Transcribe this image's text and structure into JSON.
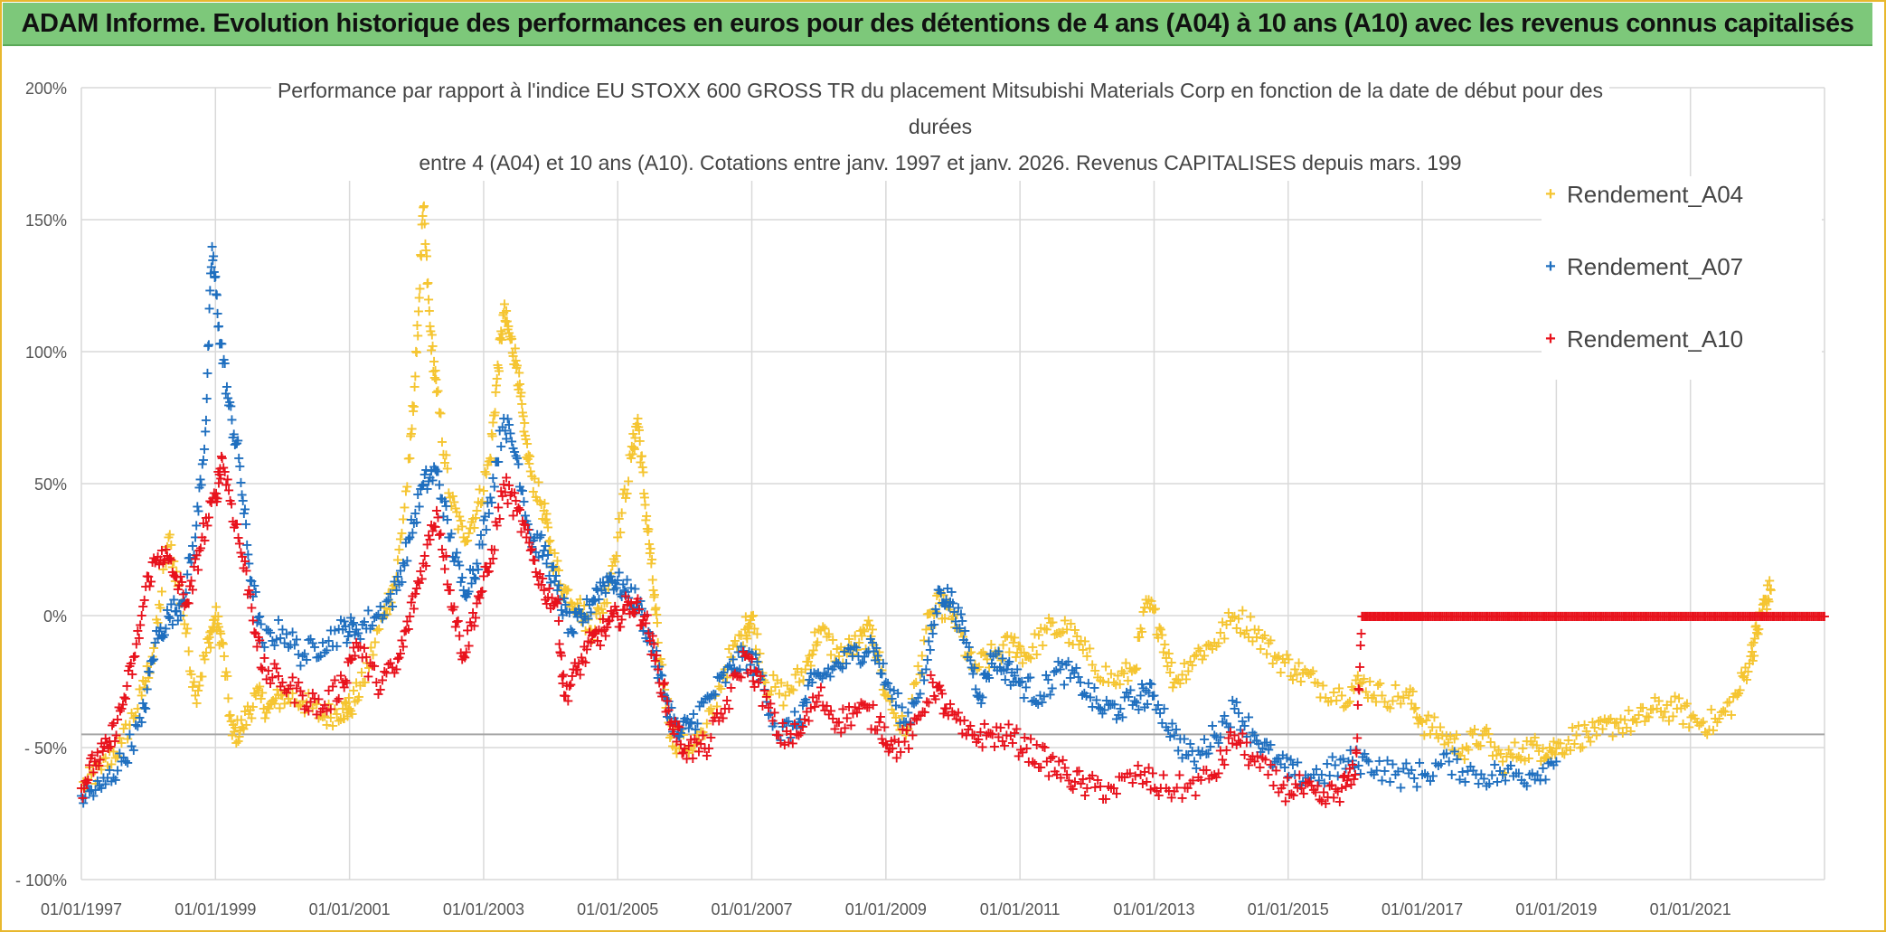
{
  "banner": {
    "text": "ADAM Informe. Evolution historique des performances en euros pour des détentions de 4 ans (A04) à 10 ans (A10) avec les revenus connus capitalisés"
  },
  "chart_data": {
    "type": "scatter",
    "title_lines": [
      "Performance par rapport à l'indice EU STOXX 600 GROSS TR  du placement Mitsubishi Materials Corp en fonction de la date de début pour des",
      "durées",
      "entre 4 (A04) et 10 ans (A10). Cotations entre janv. 1997 et janv. 2026. Revenus CAPITALISES depuis mars. 199"
    ],
    "xlabel": "",
    "ylabel": "",
    "x_ticks": [
      "01/01/1997",
      "01/01/1999",
      "01/01/2001",
      "01/01/2003",
      "01/01/2005",
      "01/01/2007",
      "01/01/2009",
      "01/01/2011",
      "01/01/2013",
      "01/01/2015",
      "01/01/2017",
      "01/01/2019",
      "01/01/2021"
    ],
    "x_range": [
      1997.0,
      2023.0
    ],
    "y_ticks": [
      {
        "value": 200,
        "label": "200%"
      },
      {
        "value": 150,
        "label": "150%"
      },
      {
        "value": 100,
        "label": "100%"
      },
      {
        "value": 50,
        "label": "50%"
      },
      {
        "value": 0,
        "label": "0%"
      },
      {
        "value": -50,
        "label": "- 50%"
      },
      {
        "value": -100,
        "label": "- 100%"
      }
    ],
    "y_range": [
      -100,
      200
    ],
    "reference_line": -45,
    "grid": true,
    "legend_position": "top-right",
    "series": [
      {
        "name": "Rendement_A04",
        "color": "#f5c531",
        "marker": "+",
        "points": [
          [
            1997.0,
            -65
          ],
          [
            1997.3,
            -58
          ],
          [
            1997.6,
            -48
          ],
          [
            1997.9,
            -30
          ],
          [
            1998.1,
            -10
          ],
          [
            1998.3,
            30
          ],
          [
            1998.5,
            5
          ],
          [
            1998.7,
            -30
          ],
          [
            1998.9,
            -10
          ],
          [
            1999.0,
            0
          ],
          [
            1999.1,
            -10
          ],
          [
            1999.25,
            -45
          ],
          [
            1999.4,
            -42
          ],
          [
            1999.6,
            -30
          ],
          [
            1999.8,
            -35
          ],
          [
            2000.0,
            -30
          ],
          [
            2000.3,
            -32
          ],
          [
            2000.6,
            -38
          ],
          [
            2000.9,
            -35
          ],
          [
            2001.0,
            -35
          ],
          [
            2001.2,
            -25
          ],
          [
            2001.5,
            0
          ],
          [
            2001.7,
            15
          ],
          [
            2001.9,
            60
          ],
          [
            2002.0,
            100
          ],
          [
            2002.1,
            155
          ],
          [
            2002.2,
            110
          ],
          [
            2002.3,
            85
          ],
          [
            2002.5,
            45
          ],
          [
            2002.7,
            30
          ],
          [
            2002.9,
            40
          ],
          [
            2003.1,
            60
          ],
          [
            2003.2,
            90
          ],
          [
            2003.3,
            115
          ],
          [
            2003.4,
            105
          ],
          [
            2003.5,
            95
          ],
          [
            2003.6,
            70
          ],
          [
            2003.7,
            55
          ],
          [
            2003.9,
            40
          ],
          [
            2004.0,
            25
          ],
          [
            2004.2,
            10
          ],
          [
            2004.4,
            5
          ],
          [
            2004.6,
            -5
          ],
          [
            2004.8,
            5
          ],
          [
            2005.0,
            30
          ],
          [
            2005.2,
            60
          ],
          [
            2005.3,
            75
          ],
          [
            2005.4,
            45
          ],
          [
            2005.5,
            20
          ],
          [
            2005.6,
            -10
          ],
          [
            2005.8,
            -45
          ],
          [
            2006.0,
            -50
          ],
          [
            2006.3,
            -45
          ],
          [
            2006.6,
            -20
          ],
          [
            2006.9,
            -5
          ],
          [
            2007.0,
            0
          ],
          [
            2007.2,
            -25
          ],
          [
            2007.5,
            -30
          ],
          [
            2007.8,
            -20
          ],
          [
            2008.0,
            -5
          ],
          [
            2008.3,
            -15
          ],
          [
            2008.6,
            -10
          ],
          [
            2008.8,
            -5
          ],
          [
            2009.0,
            -30
          ],
          [
            2009.3,
            -45
          ],
          [
            2009.6,
            -5
          ],
          [
            2009.8,
            5
          ],
          [
            2010.0,
            0
          ],
          [
            2010.3,
            -20
          ],
          [
            2010.6,
            -15
          ],
          [
            2010.9,
            -10
          ],
          [
            2011.1,
            -15
          ],
          [
            2011.4,
            -5
          ],
          [
            2011.7,
            -5
          ],
          [
            2012.0,
            -15
          ],
          [
            2012.4,
            -25
          ],
          [
            2012.7,
            -20
          ],
          [
            2012.9,
            5
          ],
          [
            2013.1,
            -5
          ],
          [
            2013.3,
            -25
          ],
          [
            2013.6,
            -15
          ],
          [
            2013.9,
            -10
          ],
          [
            2014.2,
            0
          ],
          [
            2014.5,
            -5
          ],
          [
            2014.8,
            -15
          ],
          [
            2015.1,
            -20
          ],
          [
            2015.4,
            -25
          ],
          [
            2015.8,
            -30
          ],
          [
            2016.1,
            -25
          ],
          [
            2016.4,
            -30
          ],
          [
            2016.8,
            -30
          ],
          [
            2017.0,
            -40
          ],
          [
            2017.3,
            -45
          ],
          [
            2017.6,
            -50
          ],
          [
            2017.9,
            -45
          ],
          [
            2018.2,
            -55
          ],
          [
            2018.5,
            -50
          ],
          [
            2018.8,
            -50
          ],
          [
            2019.0,
            -50
          ],
          [
            2019.3,
            -45
          ],
          [
            2019.6,
            -45
          ],
          [
            2019.9,
            -40
          ],
          [
            2020.2,
            -40
          ],
          [
            2020.5,
            -35
          ],
          [
            2020.8,
            -35
          ],
          [
            2021.1,
            -40
          ],
          [
            2021.4,
            -40
          ],
          [
            2021.7,
            -30
          ],
          [
            2021.9,
            -15
          ],
          [
            2022.0,
            -5
          ],
          [
            2022.1,
            5
          ],
          [
            2022.2,
            10
          ]
        ]
      },
      {
        "name": "Rendement_A07",
        "color": "#1f6fbf",
        "marker": "+",
        "points": [
          [
            1997.0,
            -68
          ],
          [
            1997.3,
            -65
          ],
          [
            1997.6,
            -55
          ],
          [
            1997.9,
            -40
          ],
          [
            1998.1,
            -10
          ],
          [
            1998.3,
            0
          ],
          [
            1998.5,
            5
          ],
          [
            1998.7,
            30
          ],
          [
            1998.85,
            70
          ],
          [
            1998.95,
            140
          ],
          [
            1999.05,
            110
          ],
          [
            1999.2,
            80
          ],
          [
            1999.35,
            60
          ],
          [
            1999.5,
            20
          ],
          [
            1999.7,
            -10
          ],
          [
            2000.0,
            -5
          ],
          [
            2000.3,
            -15
          ],
          [
            2000.6,
            -10
          ],
          [
            2000.9,
            -5
          ],
          [
            2001.1,
            -5
          ],
          [
            2001.4,
            0
          ],
          [
            2001.7,
            10
          ],
          [
            2001.9,
            30
          ],
          [
            2002.1,
            50
          ],
          [
            2002.3,
            55
          ],
          [
            2002.5,
            30
          ],
          [
            2002.7,
            10
          ],
          [
            2002.9,
            20
          ],
          [
            2003.1,
            45
          ],
          [
            2003.3,
            75
          ],
          [
            2003.5,
            60
          ],
          [
            2003.7,
            30
          ],
          [
            2003.9,
            25
          ],
          [
            2004.1,
            10
          ],
          [
            2004.3,
            -5
          ],
          [
            2004.5,
            0
          ],
          [
            2004.7,
            10
          ],
          [
            2004.9,
            15
          ],
          [
            2005.1,
            10
          ],
          [
            2005.3,
            5
          ],
          [
            2005.5,
            -10
          ],
          [
            2005.7,
            -30
          ],
          [
            2005.9,
            -45
          ],
          [
            2006.1,
            -40
          ],
          [
            2006.4,
            -30
          ],
          [
            2006.7,
            -20
          ],
          [
            2006.9,
            -15
          ],
          [
            2007.1,
            -20
          ],
          [
            2007.4,
            -45
          ],
          [
            2007.7,
            -40
          ],
          [
            2007.9,
            -25
          ],
          [
            2008.2,
            -20
          ],
          [
            2008.5,
            -15
          ],
          [
            2008.8,
            -10
          ],
          [
            2009.0,
            -25
          ],
          [
            2009.3,
            -40
          ],
          [
            2009.6,
            -20
          ],
          [
            2009.8,
            10
          ],
          [
            2010.0,
            5
          ],
          [
            2010.2,
            -10
          ],
          [
            2010.4,
            -30
          ],
          [
            2010.6,
            -15
          ],
          [
            2010.8,
            -20
          ],
          [
            2011.0,
            -25
          ],
          [
            2011.3,
            -30
          ],
          [
            2011.6,
            -20
          ],
          [
            2011.9,
            -25
          ],
          [
            2012.2,
            -35
          ],
          [
            2012.5,
            -35
          ],
          [
            2012.8,
            -30
          ],
          [
            2013.0,
            -30
          ],
          [
            2013.3,
            -45
          ],
          [
            2013.6,
            -55
          ],
          [
            2013.9,
            -45
          ],
          [
            2014.2,
            -35
          ],
          [
            2014.5,
            -45
          ],
          [
            2014.8,
            -55
          ],
          [
            2015.1,
            -60
          ],
          [
            2015.5,
            -60
          ],
          [
            2015.9,
            -55
          ],
          [
            2016.2,
            -55
          ],
          [
            2016.6,
            -60
          ],
          [
            2017.0,
            -60
          ],
          [
            2017.4,
            -55
          ],
          [
            2017.8,
            -60
          ],
          [
            2018.2,
            -60
          ],
          [
            2018.6,
            -60
          ],
          [
            2019.0,
            -55
          ]
        ]
      },
      {
        "name": "Rendement_A10",
        "color": "#e8121c",
        "marker": "+",
        "points": [
          [
            1997.0,
            -65
          ],
          [
            1997.2,
            -55
          ],
          [
            1997.4,
            -50
          ],
          [
            1997.6,
            -35
          ],
          [
            1997.8,
            -15
          ],
          [
            1998.0,
            15
          ],
          [
            1998.2,
            25
          ],
          [
            1998.4,
            15
          ],
          [
            1998.6,
            5
          ],
          [
            1998.8,
            30
          ],
          [
            1999.0,
            45
          ],
          [
            1999.1,
            60
          ],
          [
            1999.3,
            35
          ],
          [
            1999.5,
            10
          ],
          [
            1999.7,
            -20
          ],
          [
            2000.0,
            -25
          ],
          [
            2000.3,
            -30
          ],
          [
            2000.6,
            -35
          ],
          [
            2000.9,
            -25
          ],
          [
            2001.1,
            -10
          ],
          [
            2001.4,
            -25
          ],
          [
            2001.7,
            -20
          ],
          [
            2001.9,
            0
          ],
          [
            2002.1,
            20
          ],
          [
            2002.3,
            40
          ],
          [
            2002.5,
            10
          ],
          [
            2002.7,
            -15
          ],
          [
            2002.9,
            5
          ],
          [
            2003.1,
            20
          ],
          [
            2003.3,
            50
          ],
          [
            2003.5,
            40
          ],
          [
            2003.7,
            25
          ],
          [
            2003.9,
            10
          ],
          [
            2004.1,
            5
          ],
          [
            2004.2,
            -30
          ],
          [
            2004.4,
            -20
          ],
          [
            2004.6,
            -10
          ],
          [
            2004.8,
            -5
          ],
          [
            2005.0,
            0
          ],
          [
            2005.2,
            5
          ],
          [
            2005.4,
            0
          ],
          [
            2005.6,
            -20
          ],
          [
            2005.8,
            -40
          ],
          [
            2006.0,
            -50
          ],
          [
            2006.3,
            -50
          ],
          [
            2006.6,
            -35
          ],
          [
            2006.9,
            -15
          ],
          [
            2007.1,
            -25
          ],
          [
            2007.4,
            -45
          ],
          [
            2007.7,
            -45
          ],
          [
            2008.0,
            -30
          ],
          [
            2008.3,
            -40
          ],
          [
            2008.6,
            -35
          ],
          [
            2008.9,
            -40
          ],
          [
            2009.1,
            -50
          ],
          [
            2009.4,
            -45
          ],
          [
            2009.7,
            -25
          ],
          [
            2009.9,
            -35
          ],
          [
            2010.2,
            -45
          ],
          [
            2010.5,
            -45
          ],
          [
            2010.8,
            -45
          ],
          [
            2011.1,
            -50
          ],
          [
            2011.4,
            -55
          ],
          [
            2011.7,
            -60
          ],
          [
            2012.0,
            -65
          ],
          [
            2012.4,
            -65
          ],
          [
            2012.8,
            -60
          ],
          [
            2013.1,
            -65
          ],
          [
            2013.5,
            -65
          ],
          [
            2013.9,
            -60
          ],
          [
            2014.2,
            -45
          ],
          [
            2014.5,
            -55
          ],
          [
            2014.9,
            -65
          ],
          [
            2015.2,
            -65
          ],
          [
            2015.5,
            -70
          ],
          [
            2015.8,
            -65
          ],
          [
            2016.0,
            -60
          ],
          [
            2016.1,
            0
          ],
          [
            2017.0,
            0
          ],
          [
            2018.0,
            0
          ],
          [
            2019.0,
            0
          ],
          [
            2020.0,
            0
          ],
          [
            2021.0,
            0
          ],
          [
            2022.0,
            0
          ],
          [
            2023.0,
            0
          ]
        ]
      }
    ]
  }
}
